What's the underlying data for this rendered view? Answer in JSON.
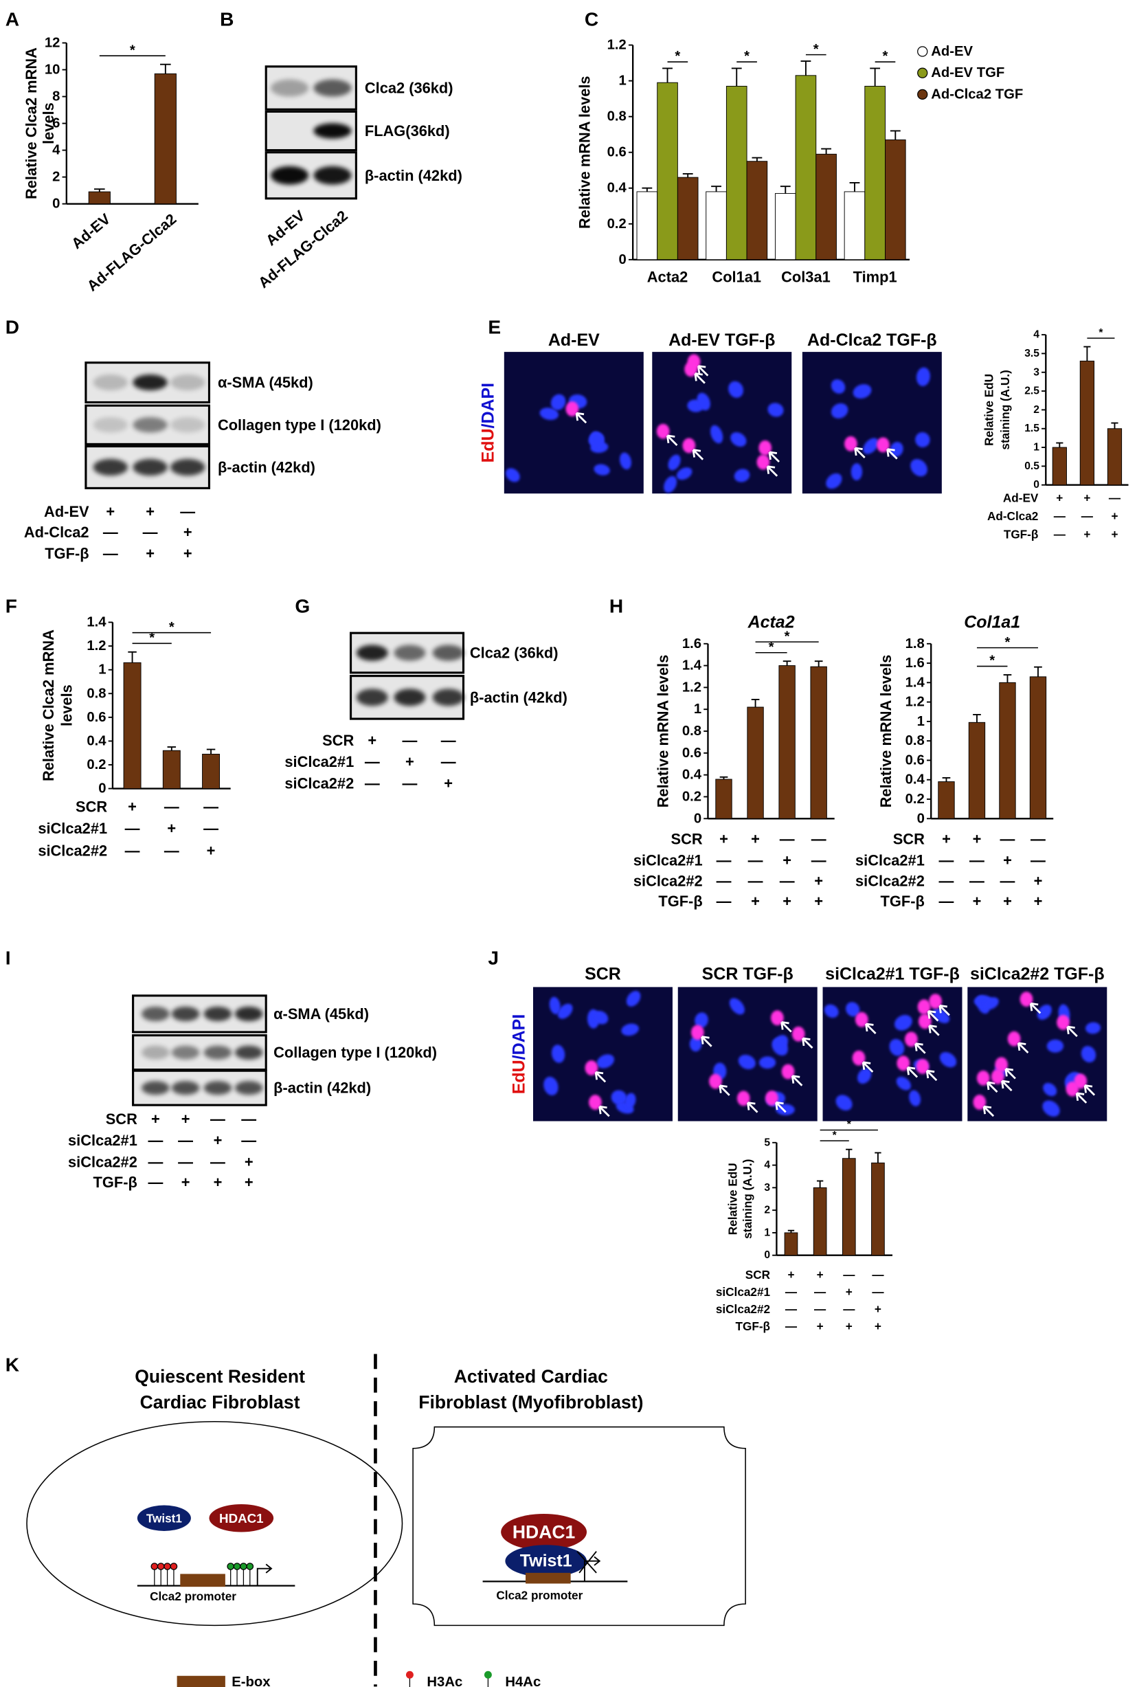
{
  "panel_labels": [
    "A",
    "B",
    "C",
    "D",
    "E",
    "F",
    "G",
    "H",
    "I",
    "J",
    "K"
  ],
  "chart_data": [
    {
      "type": "bar",
      "ylabel": [
        "Relative Clca2 mRNA",
        "levels"
      ],
      "categories": [
        "Ad-EV",
        "Ad-FLAG-Clca2"
      ],
      "values": [
        0.9,
        9.7
      ],
      "errors": [
        0.2,
        0.7
      ],
      "color": "#6b3510",
      "ylim": [
        0,
        12
      ],
      "yticks": [
        0,
        2,
        4,
        6,
        8,
        10,
        12
      ],
      "annotations": [
        {
          "label": "*",
          "from": 0,
          "to": 1
        }
      ]
    },
    {
      "type": "grouped_bar",
      "ylabel": [
        "Relative mRNA levels"
      ],
      "categories": [
        "Acta2",
        "Col1a1",
        "Col3a1",
        "Timp1"
      ],
      "series": [
        {
          "name": "Ad-EV",
          "color": "#ffffff",
          "values": [
            0.38,
            0.38,
            0.37,
            0.38
          ],
          "errors": [
            0.02,
            0.03,
            0.04,
            0.05
          ]
        },
        {
          "name": "Ad-EV TGF",
          "color": "#8a9a1a",
          "values": [
            0.99,
            0.97,
            1.03,
            0.97
          ],
          "errors": [
            0.08,
            0.1,
            0.08,
            0.1
          ]
        },
        {
          "name": "Ad-Clca2 TGF",
          "color": "#6b3510",
          "values": [
            0.46,
            0.55,
            0.59,
            0.67
          ],
          "errors": [
            0.02,
            0.02,
            0.03,
            0.05
          ]
        }
      ],
      "ylim": [
        0,
        1.2
      ],
      "yticks": [
        0,
        0.2,
        0.4,
        0.6,
        0.8,
        1,
        1.2
      ],
      "legend": "top-right",
      "annotations": [
        {
          "label": "*",
          "category": 0
        },
        {
          "label": "*",
          "category": 1
        },
        {
          "label": "*",
          "category": 2
        },
        {
          "label": "*",
          "category": 3
        }
      ]
    },
    {
      "type": "bar",
      "ylabel": [
        "Relative EdU",
        "staining (A.U.)"
      ],
      "values": [
        1,
        3.3,
        1.5
      ],
      "errors": [
        0.12,
        0.38,
        0.15
      ],
      "color": "#6b3510",
      "ylim": [
        0,
        4
      ],
      "yticks": [
        0,
        0.5,
        1,
        1.5,
        2,
        2.5,
        3,
        3.5,
        4
      ],
      "annotations": [
        {
          "label": "*",
          "from": 1,
          "to": 2
        }
      ],
      "conditions": [
        {
          "name": "Ad-EV",
          "marks": [
            "+",
            "+",
            "—"
          ]
        },
        {
          "name": "Ad-Clca2",
          "marks": [
            "—",
            "—",
            "+"
          ]
        },
        {
          "name": "TGF-β",
          "marks": [
            "—",
            "+",
            "+"
          ]
        }
      ]
    },
    {
      "type": "bar",
      "ylabel": [
        "Relative Clca2 mRNA",
        "levels"
      ],
      "values": [
        1.06,
        0.32,
        0.29
      ],
      "errors": [
        0.09,
        0.03,
        0.04
      ],
      "color": "#6b3510",
      "ylim": [
        0,
        1.4
      ],
      "yticks": [
        0,
        0.2,
        0.4,
        0.6,
        0.8,
        1,
        1.2,
        1.4
      ],
      "annotations": [
        {
          "label": "*",
          "from": 0,
          "to": 1
        },
        {
          "label": "*",
          "from": 0,
          "to": 2
        }
      ],
      "conditions": [
        {
          "name": "SCR",
          "marks": [
            "+",
            "—",
            "—"
          ]
        },
        {
          "name": "siClca2#1",
          "marks": [
            "—",
            "+",
            "—"
          ]
        },
        {
          "name": "siClca2#2",
          "marks": [
            "—",
            "—",
            "+"
          ]
        }
      ]
    },
    {
      "type": "bar",
      "title": "Acta2",
      "ylabel": [
        "Relative mRNA levels"
      ],
      "values": [
        0.36,
        1.02,
        1.4,
        1.39
      ],
      "errors": [
        0.02,
        0.07,
        0.04,
        0.05
      ],
      "color": "#6b3510",
      "ylim": [
        0,
        1.6
      ],
      "yticks": [
        0,
        0.2,
        0.4,
        0.6,
        0.8,
        1,
        1.2,
        1.4,
        1.6
      ],
      "annotations": [
        {
          "label": "*",
          "from": 1,
          "to": 2
        },
        {
          "label": "*",
          "from": 1,
          "to": 3
        }
      ],
      "conditions": [
        {
          "name": "SCR",
          "marks": [
            "+",
            "+",
            "—",
            "—"
          ]
        },
        {
          "name": "siClca2#1",
          "marks": [
            "—",
            "—",
            "+",
            "—"
          ]
        },
        {
          "name": "siClca2#2",
          "marks": [
            "—",
            "—",
            "—",
            "+"
          ]
        },
        {
          "name": "TGF-β",
          "marks": [
            "—",
            "+",
            "+",
            "+"
          ]
        }
      ]
    },
    {
      "type": "bar",
      "title": "Col1a1",
      "ylabel": [
        "Relative mRNA levels"
      ],
      "values": [
        0.38,
        0.99,
        1.4,
        1.46
      ],
      "errors": [
        0.04,
        0.08,
        0.08,
        0.1
      ],
      "color": "#6b3510",
      "ylim": [
        0,
        1.8
      ],
      "yticks": [
        0,
        0.2,
        0.4,
        0.6,
        0.8,
        1,
        1.2,
        1.4,
        1.6,
        1.8
      ],
      "annotations": [
        {
          "label": "*",
          "from": 1,
          "to": 2
        },
        {
          "label": "*",
          "from": 1,
          "to": 3
        }
      ],
      "conditions": [
        {
          "name": "SCR",
          "marks": [
            "+",
            "+",
            "—",
            "—"
          ]
        },
        {
          "name": "siClca2#1",
          "marks": [
            "—",
            "—",
            "+",
            "—"
          ]
        },
        {
          "name": "siClca2#2",
          "marks": [
            "—",
            "—",
            "—",
            "+"
          ]
        },
        {
          "name": "TGF-β",
          "marks": [
            "—",
            "+",
            "+",
            "+"
          ]
        }
      ]
    },
    {
      "type": "bar",
      "ylabel": [
        "Relative EdU",
        "staining (A.U.)"
      ],
      "values": [
        1,
        3,
        4.3,
        4.1
      ],
      "errors": [
        0.1,
        0.3,
        0.4,
        0.45
      ],
      "color": "#6b3510",
      "ylim": [
        0,
        5
      ],
      "yticks": [
        0,
        1,
        2,
        3,
        4,
        5
      ],
      "annotations": [
        {
          "label": "*",
          "from": 1,
          "to": 2
        },
        {
          "label": "*",
          "from": 1,
          "to": 3
        }
      ],
      "conditions": [
        {
          "name": "SCR",
          "marks": [
            "+",
            "+",
            "—",
            "—"
          ]
        },
        {
          "name": "siClca2#1",
          "marks": [
            "—",
            "—",
            "+",
            "—"
          ]
        },
        {
          "name": "siClca2#2",
          "marks": [
            "—",
            "—",
            "—",
            "+"
          ]
        },
        {
          "name": "TGF-β",
          "marks": [
            "—",
            "+",
            "+",
            "+"
          ]
        }
      ]
    }
  ],
  "blots": [
    {
      "bands": [
        "Clca2 (36kd)",
        "FLAG(36kd)",
        "β-actin (42kd)"
      ],
      "lanes": [
        "Ad-EV",
        "Ad-FLAG-Clca2"
      ]
    },
    {
      "bands": [
        "α-SMA (45kd)",
        "Collagen type I (120kd)",
        "β-actin (42kd)"
      ],
      "conditions": [
        {
          "name": "Ad-EV",
          "marks": [
            "+",
            "+",
            "—"
          ]
        },
        {
          "name": "Ad-Clca2",
          "marks": [
            "—",
            "—",
            "+"
          ]
        },
        {
          "name": "TGF-β",
          "marks": [
            "—",
            "+",
            "+"
          ]
        }
      ]
    },
    {
      "bands": [
        "Clca2 (36kd)",
        "β-actin (42kd)"
      ],
      "conditions": [
        {
          "name": "SCR",
          "marks": [
            "+",
            "—",
            "—"
          ]
        },
        {
          "name": "siClca2#1",
          "marks": [
            "—",
            "+",
            "—"
          ]
        },
        {
          "name": "siClca2#2",
          "marks": [
            "—",
            "—",
            "+"
          ]
        }
      ]
    },
    {
      "bands": [
        "α-SMA (45kd)",
        "Collagen type I (120kd)",
        "β-actin (42kd)"
      ],
      "conditions": [
        {
          "name": "SCR",
          "marks": [
            "+",
            "+",
            "—",
            "—"
          ]
        },
        {
          "name": "siClca2#1",
          "marks": [
            "—",
            "—",
            "+",
            "—"
          ]
        },
        {
          "name": "siClca2#2",
          "marks": [
            "—",
            "—",
            "—",
            "+"
          ]
        },
        {
          "name": "TGF-β",
          "marks": [
            "—",
            "+",
            "+",
            "+"
          ]
        }
      ]
    }
  ],
  "images": [
    {
      "titles": [
        "Ad-EV",
        "Ad-EV TGF-β",
        "Ad-Clca2 TGF-β"
      ],
      "stain": [
        "EdU",
        "/DAPI"
      ]
    },
    {
      "titles": [
        "SCR",
        "SCR TGF-β",
        "siClca2#1 TGF-β",
        "siClca2#2 TGF-β"
      ],
      "stain": [
        "EdU",
        "/DAPI"
      ]
    }
  ],
  "model": {
    "left_title": [
      "Quiescent Resident",
      "Cardiac Fibroblast"
    ],
    "right_title": [
      "Activated Cardiac",
      "Fibroblast (Myofibroblast)"
    ],
    "left": {
      "proteins": [
        "Twist1",
        "HDAC1"
      ],
      "promoter": "Clca2 promoter"
    },
    "right": {
      "proteins": [
        "HDAC1",
        "Twist1"
      ],
      "promoter": "Clca2 promoter"
    },
    "legend": [
      "E-box",
      "H3Ac",
      "H4Ac"
    ]
  }
}
